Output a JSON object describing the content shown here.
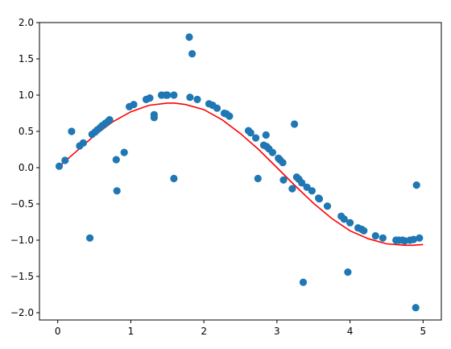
{
  "chart_data": {
    "type": "scatter",
    "title": "",
    "xlabel": "",
    "ylabel": "",
    "xlim": [
      -0.25,
      5.25
    ],
    "ylim": [
      -2.1,
      2.0
    ],
    "grid": false,
    "legend": "none",
    "x_ticks": [
      "0",
      "1",
      "2",
      "3",
      "4",
      "5"
    ],
    "y_ticks": [
      "2.0",
      "1.5",
      "1.0",
      "0.5",
      "0.0",
      "−0.5",
      "−1.0",
      "−1.5",
      "−2.0"
    ],
    "colors": {
      "points": "#1f77b4",
      "line": "#ff0000",
      "axes": "#000000"
    },
    "series": [
      {
        "type": "scatter",
        "points": [
          [
            0.02,
            0.02
          ],
          [
            0.1,
            0.1
          ],
          [
            0.19,
            0.5
          ],
          [
            0.3,
            0.3
          ],
          [
            0.35,
            0.34
          ],
          [
            0.44,
            -0.97
          ],
          [
            0.47,
            0.46
          ],
          [
            0.51,
            0.49
          ],
          [
            0.54,
            0.52
          ],
          [
            0.58,
            0.55
          ],
          [
            0.61,
            0.58
          ],
          [
            0.65,
            0.61
          ],
          [
            0.69,
            0.64
          ],
          [
            0.71,
            0.66
          ],
          [
            0.8,
            0.11
          ],
          [
            0.81,
            -0.32
          ],
          [
            0.91,
            0.21
          ],
          [
            0.98,
            0.84
          ],
          [
            1.04,
            0.87
          ],
          [
            1.21,
            0.94
          ],
          [
            1.26,
            0.96
          ],
          [
            1.32,
            0.73
          ],
          [
            1.32,
            0.69
          ],
          [
            1.42,
            1.0
          ],
          [
            1.48,
            1.0
          ],
          [
            1.5,
            1.0
          ],
          [
            1.59,
            1.0
          ],
          [
            1.59,
            -0.15
          ],
          [
            1.8,
            1.8
          ],
          [
            1.81,
            0.97
          ],
          [
            1.84,
            1.57
          ],
          [
            1.91,
            0.94
          ],
          [
            2.07,
            0.88
          ],
          [
            2.12,
            0.86
          ],
          [
            2.18,
            0.82
          ],
          [
            2.28,
            0.75
          ],
          [
            2.31,
            0.74
          ],
          [
            2.35,
            0.71
          ],
          [
            2.61,
            0.51
          ],
          [
            2.64,
            0.48
          ],
          [
            2.71,
            0.41
          ],
          [
            2.74,
            -0.15
          ],
          [
            2.82,
            0.31
          ],
          [
            2.85,
            0.45
          ],
          [
            2.86,
            0.29
          ],
          [
            2.89,
            0.26
          ],
          [
            2.94,
            0.21
          ],
          [
            3.02,
            0.13
          ],
          [
            3.04,
            0.11
          ],
          [
            3.08,
            0.07
          ],
          [
            3.09,
            -0.17
          ],
          [
            3.21,
            -0.29
          ],
          [
            3.24,
            0.6
          ],
          [
            3.27,
            -0.13
          ],
          [
            3.3,
            -0.16
          ],
          [
            3.34,
            -0.21
          ],
          [
            3.36,
            -1.58
          ],
          [
            3.41,
            -0.27
          ],
          [
            3.48,
            -0.32
          ],
          [
            3.57,
            -0.42
          ],
          [
            3.58,
            -0.43
          ],
          [
            3.69,
            -0.53
          ],
          [
            3.88,
            -0.67
          ],
          [
            3.92,
            -0.71
          ],
          [
            3.97,
            -1.44
          ],
          [
            4.0,
            -0.76
          ],
          [
            4.11,
            -0.83
          ],
          [
            4.16,
            -0.85
          ],
          [
            4.19,
            -0.87
          ],
          [
            4.35,
            -0.94
          ],
          [
            4.45,
            -0.97
          ],
          [
            4.63,
            -1.0
          ],
          [
            4.67,
            -1.0
          ],
          [
            4.72,
            -1.0
          ],
          [
            4.75,
            -1.01
          ],
          [
            4.82,
            -1.0
          ],
          [
            4.87,
            -0.99
          ],
          [
            4.9,
            -1.93
          ],
          [
            4.91,
            -0.24
          ],
          [
            4.95,
            -0.97
          ]
        ]
      },
      {
        "type": "line",
        "description": "smooth fitted curve",
        "x": [
          0.0,
          0.25,
          0.5,
          0.75,
          1.0,
          1.25,
          1.5,
          1.6,
          1.75,
          2.0,
          2.25,
          2.5,
          2.75,
          3.0,
          3.25,
          3.5,
          3.75,
          4.0,
          4.25,
          4.5,
          4.75,
          4.85,
          5.0
        ],
        "y": [
          0.0,
          0.22,
          0.44,
          0.63,
          0.77,
          0.86,
          0.89,
          0.89,
          0.87,
          0.8,
          0.66,
          0.47,
          0.25,
          0.0,
          -0.25,
          -0.49,
          -0.7,
          -0.87,
          -0.98,
          -1.05,
          -1.07,
          -1.07,
          -1.06
        ]
      }
    ]
  }
}
